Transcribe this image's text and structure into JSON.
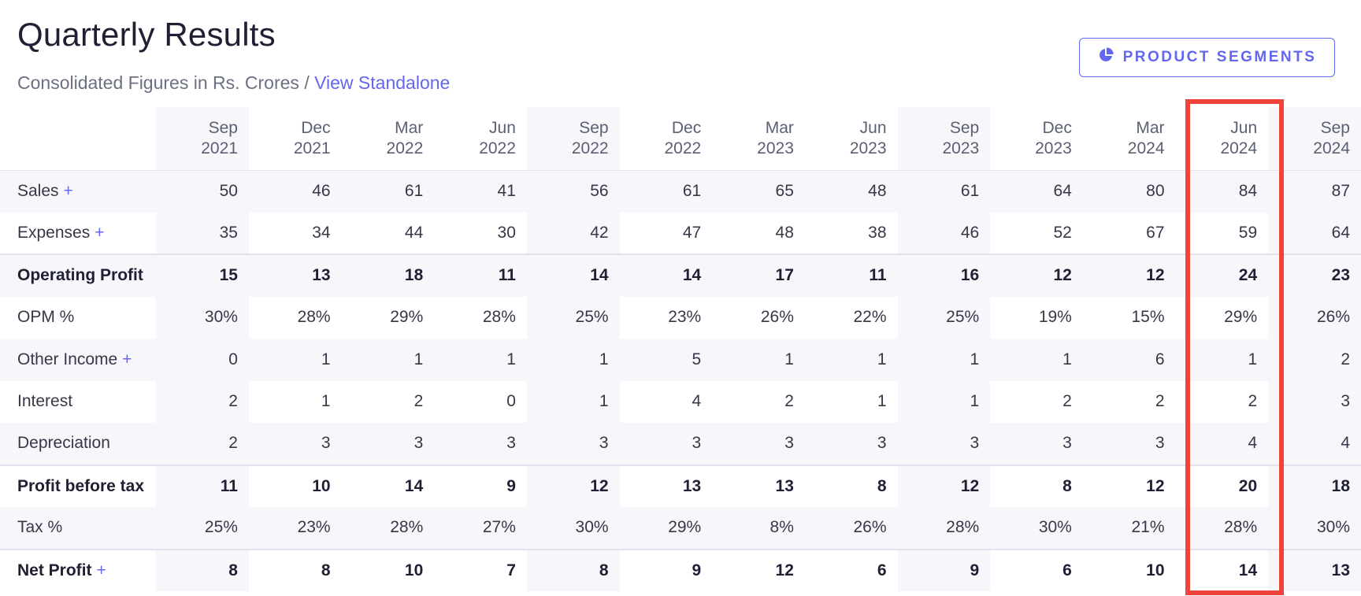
{
  "header": {
    "title": "Quarterly Results",
    "subtitle_text": "Consolidated Figures in Rs. Crores / ",
    "subtitle_link": "View Standalone",
    "segments_button": "PRODUCT SEGMENTS"
  },
  "accent_color": "#6366f1",
  "highlight_color": "#f0433a",
  "columns": [
    {
      "month": "Sep",
      "year": "2021"
    },
    {
      "month": "Dec",
      "year": "2021"
    },
    {
      "month": "Mar",
      "year": "2022"
    },
    {
      "month": "Jun",
      "year": "2022"
    },
    {
      "month": "Sep",
      "year": "2022"
    },
    {
      "month": "Dec",
      "year": "2022"
    },
    {
      "month": "Mar",
      "year": "2023"
    },
    {
      "month": "Jun",
      "year": "2023"
    },
    {
      "month": "Sep",
      "year": "2023"
    },
    {
      "month": "Dec",
      "year": "2023"
    },
    {
      "month": "Mar",
      "year": "2024"
    },
    {
      "month": "Jun",
      "year": "2024"
    },
    {
      "month": "Sep",
      "year": "2024"
    }
  ],
  "rows": [
    {
      "label": "Sales",
      "expandable": true,
      "bold": false,
      "values": [
        "50",
        "46",
        "61",
        "41",
        "56",
        "61",
        "65",
        "48",
        "61",
        "64",
        "80",
        "84",
        "87"
      ]
    },
    {
      "label": "Expenses",
      "expandable": true,
      "bold": false,
      "values": [
        "35",
        "34",
        "44",
        "30",
        "42",
        "47",
        "48",
        "38",
        "46",
        "52",
        "67",
        "59",
        "64"
      ]
    },
    {
      "label": "Operating Profit",
      "expandable": false,
      "bold": true,
      "values": [
        "15",
        "13",
        "18",
        "11",
        "14",
        "14",
        "17",
        "11",
        "16",
        "12",
        "12",
        "24",
        "23"
      ]
    },
    {
      "label": "OPM %",
      "expandable": false,
      "bold": false,
      "values": [
        "30%",
        "28%",
        "29%",
        "28%",
        "25%",
        "23%",
        "26%",
        "22%",
        "25%",
        "19%",
        "15%",
        "29%",
        "26%"
      ]
    },
    {
      "label": "Other Income",
      "expandable": true,
      "bold": false,
      "values": [
        "0",
        "1",
        "1",
        "1",
        "1",
        "5",
        "1",
        "1",
        "1",
        "1",
        "6",
        "1",
        "2"
      ]
    },
    {
      "label": "Interest",
      "expandable": false,
      "bold": false,
      "values": [
        "2",
        "1",
        "2",
        "0",
        "1",
        "4",
        "2",
        "1",
        "1",
        "2",
        "2",
        "2",
        "3"
      ]
    },
    {
      "label": "Depreciation",
      "expandable": false,
      "bold": false,
      "values": [
        "2",
        "3",
        "3",
        "3",
        "3",
        "3",
        "3",
        "3",
        "3",
        "3",
        "3",
        "4",
        "4"
      ]
    },
    {
      "label": "Profit before tax",
      "expandable": false,
      "bold": true,
      "values": [
        "11",
        "10",
        "14",
        "9",
        "12",
        "13",
        "13",
        "8",
        "12",
        "8",
        "12",
        "20",
        "18"
      ]
    },
    {
      "label": "Tax %",
      "expandable": false,
      "bold": false,
      "values": [
        "25%",
        "23%",
        "28%",
        "27%",
        "30%",
        "29%",
        "8%",
        "26%",
        "28%",
        "30%",
        "21%",
        "28%",
        "30%"
      ]
    },
    {
      "label": "Net Profit",
      "expandable": true,
      "bold": true,
      "values": [
        "8",
        "8",
        "10",
        "7",
        "8",
        "9",
        "12",
        "6",
        "9",
        "6",
        "10",
        "14",
        "13"
      ]
    }
  ]
}
